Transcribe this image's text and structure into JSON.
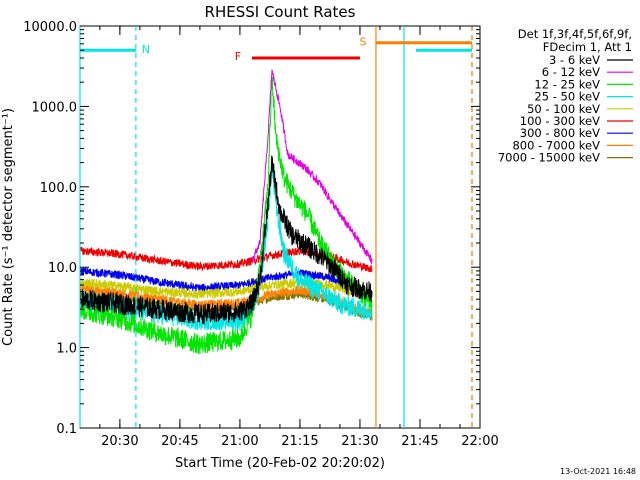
{
  "chart_data": {
    "type": "line",
    "title": "RHESSI Count Rates",
    "xlabel": "Start Time (20-Feb-02 20:20:02)",
    "ylabel": "Count Rate (s⁻¹ detector segment⁻¹)",
    "scale": {
      "y": "log",
      "x": "time"
    },
    "xlim": [
      "20:20:02",
      "22:00:00"
    ],
    "ylim": [
      0.1,
      10000
    ],
    "x_ticks": [
      "20:30",
      "20:45",
      "21:00",
      "21:15",
      "21:30",
      "21:45",
      "22:00"
    ],
    "y_ticks": [
      "0.1",
      "1.0",
      "10.0",
      "100.0",
      "1000.0",
      "10000.0"
    ],
    "timestamp": "13-Oct-2021 16:48",
    "legend": {
      "placement": "right",
      "header": [
        "Det 1f,3f,4f,5f,6f,9f,",
        "FDecim 1, Att 1"
      ],
      "entries": [
        {
          "label": "3 - 6 keV",
          "color": "#000000"
        },
        {
          "label": "6 - 12 keV",
          "color": "#e600e6"
        },
        {
          "label": "12 - 25 keV",
          "color": "#00e600"
        },
        {
          "label": "25 - 50 keV",
          "color": "#00e6e6"
        },
        {
          "label": "50 - 100 keV",
          "color": "#cccc00"
        },
        {
          "label": "100 - 300 keV",
          "color": "#ee0000"
        },
        {
          "label": "300 - 800 keV",
          "color": "#0000ee"
        },
        {
          "label": "800 - 7000 keV",
          "color": "#ff8000"
        },
        {
          "label": "7000 - 15000 keV",
          "color": "#777700"
        }
      ]
    },
    "series": [
      {
        "name": "3 - 6 keV",
        "color": "#000000",
        "noise": 0.13,
        "x": [
          "20:20",
          "20:30",
          "20:40",
          "20:50",
          "21:00",
          "21:03",
          "21:05",
          "21:07",
          "21:08",
          "21:10",
          "21:13",
          "21:20",
          "21:24",
          "21:27",
          "21:32",
          "21:33"
        ],
        "y": [
          4.0,
          3.5,
          3.0,
          2.6,
          2.8,
          3.5,
          7,
          60,
          200,
          50,
          25,
          14,
          9,
          6,
          5,
          5
        ]
      },
      {
        "name": "6 - 12 keV",
        "color": "#e600e6",
        "noise": 0.05,
        "x": [
          "21:03",
          "21:05",
          "21:07",
          "21:08",
          "21:10",
          "21:12",
          "21:16",
          "21:20",
          "21:25",
          "21:30",
          "21:33"
        ],
        "y": [
          12,
          20,
          400,
          2800,
          1000,
          250,
          180,
          110,
          45,
          20,
          12
        ]
      },
      {
        "name": "12 - 25 keV",
        "color": "#00e600",
        "noise": 0.13,
        "x": [
          "20:20",
          "20:30",
          "20:40",
          "20:50",
          "21:00",
          "21:03",
          "21:05",
          "21:07",
          "21:08",
          "21:09",
          "21:11",
          "21:14",
          "21:17",
          "21:20",
          "21:24",
          "21:28",
          "21:32",
          "21:33"
        ],
        "y": [
          3.0,
          2.3,
          1.5,
          1.1,
          1.3,
          2.5,
          10,
          100,
          2400,
          400,
          130,
          70,
          45,
          20,
          10,
          6,
          4,
          3.5
        ]
      },
      {
        "name": "25 - 50 keV",
        "color": "#00e6e6",
        "noise": 0.13,
        "x": [
          "20:20",
          "20:30",
          "20:40",
          "20:50",
          "21:00",
          "21:03",
          "21:05",
          "21:07",
          "21:08",
          "21:09",
          "21:11",
          "21:15",
          "21:20",
          "21:25",
          "21:30",
          "21:33"
        ],
        "y": [
          3.8,
          3.2,
          2.6,
          2.2,
          2.2,
          3,
          6,
          40,
          180,
          60,
          15,
          7,
          5,
          3.5,
          3,
          3
        ]
      },
      {
        "name": "50 - 100 keV",
        "color": "#cccc00",
        "noise": 0.06,
        "x": [
          "20:20",
          "20:30",
          "20:40",
          "20:50",
          "21:00",
          "21:08",
          "21:15",
          "21:22",
          "21:28",
          "21:33"
        ],
        "y": [
          6.5,
          5.8,
          5.0,
          4.6,
          5.0,
          6.0,
          6.5,
          6.0,
          5.0,
          4.6
        ]
      },
      {
        "name": "100 - 300 keV",
        "color": "#ee0000",
        "noise": 0.05,
        "x": [
          "20:20",
          "20:30",
          "20:40",
          "20:50",
          "21:00",
          "21:08",
          "21:15",
          "21:22",
          "21:28",
          "21:33"
        ],
        "y": [
          16,
          14.5,
          12,
          10.2,
          11,
          14,
          16,
          14,
          11,
          9.5
        ]
      },
      {
        "name": "300 - 800 keV",
        "color": "#0000ee",
        "noise": 0.05,
        "x": [
          "20:20",
          "20:30",
          "20:40",
          "20:50",
          "21:00",
          "21:08",
          "21:15",
          "21:22",
          "21:28",
          "21:33"
        ],
        "y": [
          9,
          8,
          6.5,
          5.5,
          6,
          7.5,
          8.5,
          7.5,
          5.5,
          4.5
        ]
      },
      {
        "name": "800 - 7000 keV",
        "color": "#ff8000",
        "noise": 0.06,
        "x": [
          "20:20",
          "20:30",
          "20:40",
          "20:50",
          "21:00",
          "21:08",
          "21:15",
          "21:22",
          "21:28",
          "21:33"
        ],
        "y": [
          5.5,
          4.8,
          4.0,
          3.4,
          3.6,
          4.6,
          5.2,
          4.4,
          3.2,
          2.6
        ]
      },
      {
        "name": "7000 - 15000 keV",
        "color": "#777700",
        "noise": 0.05,
        "x": [
          "20:20",
          "20:30",
          "20:40",
          "20:50",
          "21:00",
          "21:08",
          "21:15",
          "21:22",
          "21:28",
          "21:33"
        ],
        "y": [
          4.6,
          4.1,
          3.5,
          3.0,
          3.2,
          4.2,
          4.6,
          3.9,
          2.9,
          2.4
        ]
      }
    ],
    "annotations": [
      {
        "label": "N",
        "color": "#00e6e6",
        "bar_y": 5000,
        "bar_from": "20:20:02",
        "bar_to": "20:34:00",
        "solid_at": "20:20:02",
        "dashed_at": "20:34:00",
        "bar2_from": "21:44:00",
        "bar2_to": "21:58:00",
        "solid2_at": "21:41:00",
        "dashed2_at": "21:58:00"
      },
      {
        "label": "F",
        "color": "#ee0000",
        "bar_y": 4000,
        "bar_from": "21:03:00",
        "bar_to": "21:30:00"
      },
      {
        "label": "S",
        "color": "#ff8000",
        "bar_y": 6200,
        "bar_from": "21:34:00",
        "bar_to": "21:58:00",
        "solid_at": "21:34:00",
        "dashed_at": "21:58:00"
      }
    ]
  }
}
